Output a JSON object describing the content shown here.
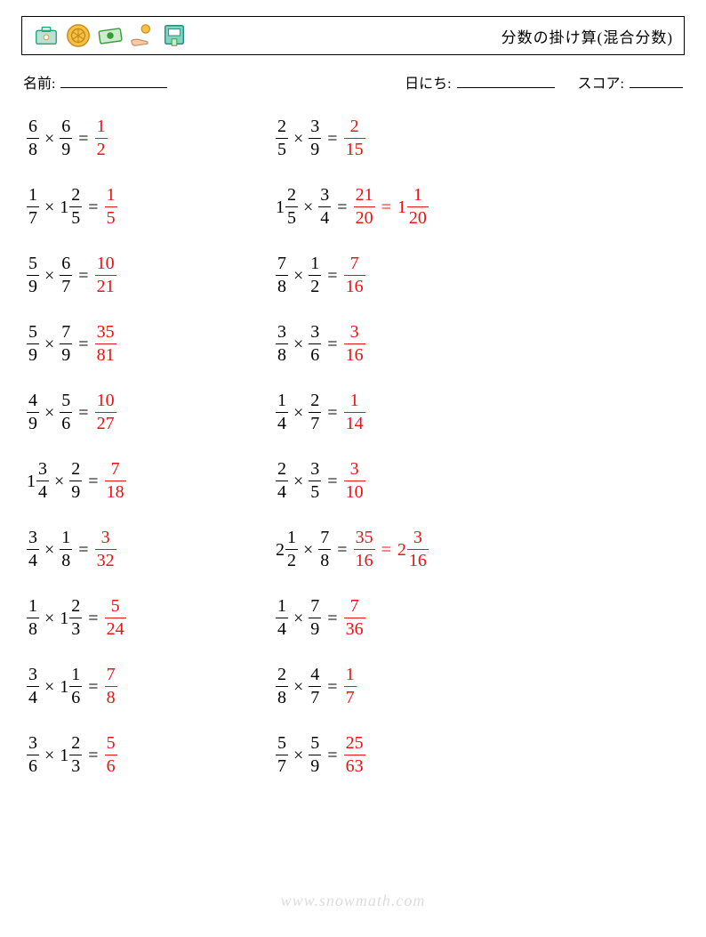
{
  "title": "分数の掛け算(混合分数)",
  "meta": {
    "name_label": "名前:",
    "date_label": "日にち:",
    "score_label": "スコア:",
    "name_blank_w": 120,
    "date_blank_w": 110,
    "score_blank_w": 60
  },
  "colors": {
    "answer": "#e11",
    "text": "#000",
    "border": "#000",
    "wm": "#dddddd"
  },
  "watermark": "www.snowmath.com",
  "columns": [
    [
      {
        "a": {
          "n": 6,
          "d": 8
        },
        "b": {
          "n": 6,
          "d": 9
        },
        "ans": [
          {
            "n": 1,
            "d": 2
          }
        ]
      },
      {
        "a": {
          "n": 1,
          "d": 7
        },
        "b": {
          "w": 1,
          "n": 2,
          "d": 5
        },
        "ans": [
          {
            "n": 1,
            "d": 5
          }
        ]
      },
      {
        "a": {
          "n": 5,
          "d": 9
        },
        "b": {
          "n": 6,
          "d": 7
        },
        "ans": [
          {
            "n": 10,
            "d": 21
          }
        ]
      },
      {
        "a": {
          "n": 5,
          "d": 9
        },
        "b": {
          "n": 7,
          "d": 9
        },
        "ans": [
          {
            "n": 35,
            "d": 81
          }
        ]
      },
      {
        "a": {
          "n": 4,
          "d": 9
        },
        "b": {
          "n": 5,
          "d": 6
        },
        "ans": [
          {
            "n": 10,
            "d": 27
          }
        ]
      },
      {
        "a": {
          "w": 1,
          "n": 3,
          "d": 4
        },
        "b": {
          "n": 2,
          "d": 9
        },
        "ans": [
          {
            "n": 7,
            "d": 18
          }
        ]
      },
      {
        "a": {
          "n": 3,
          "d": 4
        },
        "b": {
          "n": 1,
          "d": 8
        },
        "ans": [
          {
            "n": 3,
            "d": 32
          }
        ]
      },
      {
        "a": {
          "n": 1,
          "d": 8
        },
        "b": {
          "w": 1,
          "n": 2,
          "d": 3
        },
        "ans": [
          {
            "n": 5,
            "d": 24
          }
        ]
      },
      {
        "a": {
          "n": 3,
          "d": 4
        },
        "b": {
          "w": 1,
          "n": 1,
          "d": 6
        },
        "ans": [
          {
            "n": 7,
            "d": 8
          }
        ]
      },
      {
        "a": {
          "n": 3,
          "d": 6
        },
        "b": {
          "w": 1,
          "n": 2,
          "d": 3
        },
        "ans": [
          {
            "n": 5,
            "d": 6
          }
        ]
      }
    ],
    [
      {
        "a": {
          "n": 2,
          "d": 5
        },
        "b": {
          "n": 3,
          "d": 9
        },
        "ans": [
          {
            "n": 2,
            "d": 15
          }
        ]
      },
      {
        "a": {
          "w": 1,
          "n": 2,
          "d": 5
        },
        "b": {
          "n": 3,
          "d": 4
        },
        "ans": [
          {
            "n": 21,
            "d": 20
          },
          {
            "w": 1,
            "n": 1,
            "d": 20
          }
        ]
      },
      {
        "a": {
          "n": 7,
          "d": 8
        },
        "b": {
          "n": 1,
          "d": 2
        },
        "ans": [
          {
            "n": 7,
            "d": 16
          }
        ]
      },
      {
        "a": {
          "n": 3,
          "d": 8
        },
        "b": {
          "n": 3,
          "d": 6
        },
        "ans": [
          {
            "n": 3,
            "d": 16
          }
        ]
      },
      {
        "a": {
          "n": 1,
          "d": 4
        },
        "b": {
          "n": 2,
          "d": 7
        },
        "ans": [
          {
            "n": 1,
            "d": 14
          }
        ]
      },
      {
        "a": {
          "n": 2,
          "d": 4
        },
        "b": {
          "n": 3,
          "d": 5
        },
        "ans": [
          {
            "n": 3,
            "d": 10
          }
        ]
      },
      {
        "a": {
          "w": 2,
          "n": 1,
          "d": 2
        },
        "b": {
          "n": 7,
          "d": 8
        },
        "ans": [
          {
            "n": 35,
            "d": 16
          },
          {
            "w": 2,
            "n": 3,
            "d": 16
          }
        ]
      },
      {
        "a": {
          "n": 1,
          "d": 4
        },
        "b": {
          "n": 7,
          "d": 9
        },
        "ans": [
          {
            "n": 7,
            "d": 36
          }
        ]
      },
      {
        "a": {
          "n": 2,
          "d": 8
        },
        "b": {
          "n": 4,
          "d": 7
        },
        "ans": [
          {
            "n": 1,
            "d": 7
          }
        ]
      },
      {
        "a": {
          "n": 5,
          "d": 7
        },
        "b": {
          "n": 5,
          "d": 9
        },
        "ans": [
          {
            "n": 25,
            "d": 63
          }
        ]
      }
    ]
  ]
}
